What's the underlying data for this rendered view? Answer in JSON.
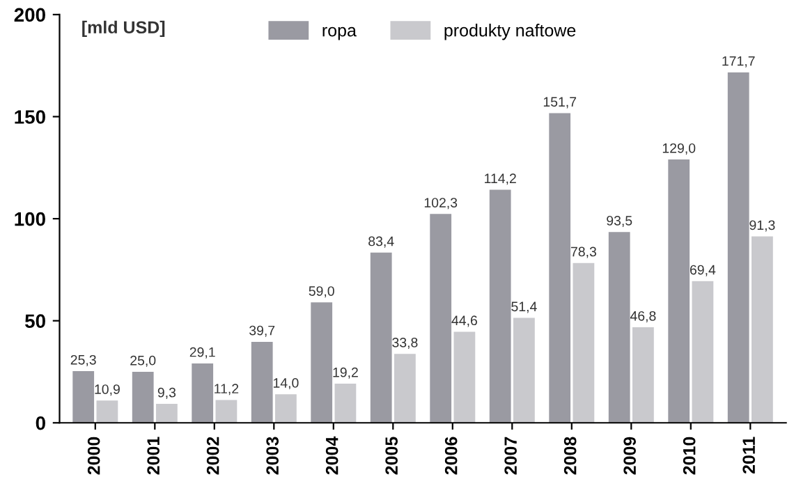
{
  "chart_data": {
    "type": "bar",
    "ylabel": "[mld USD]",
    "categories": [
      "2000",
      "2001",
      "2002",
      "2003",
      "2004",
      "2005",
      "2006",
      "2007",
      "2008",
      "2009",
      "2010",
      "2011"
    ],
    "series": [
      {
        "name": "ropa",
        "color": "#9a9aa2",
        "values": [
          25.3,
          25.0,
          29.1,
          39.7,
          59.0,
          83.4,
          102.3,
          114.2,
          151.7,
          93.5,
          129.0,
          171.7
        ],
        "value_labels": [
          "25,3",
          "25,0",
          "29,1",
          "39,7",
          "59,0",
          "83,4",
          "102,3",
          "114,2",
          "151,7",
          "93,5",
          "129,0",
          "171,7"
        ]
      },
      {
        "name": "produkty naftowe",
        "color": "#c9c9cd",
        "values": [
          10.9,
          9.3,
          11.2,
          14.0,
          19.2,
          33.8,
          44.6,
          51.4,
          78.3,
          46.8,
          69.4,
          91.3
        ],
        "value_labels": [
          "10,9",
          "9,3",
          "11,2",
          "14,0",
          "19,2",
          "33,8",
          "44,6",
          "51,4",
          "78,3",
          "46,8",
          "69,4",
          "91,3"
        ]
      }
    ],
    "ylim": [
      0,
      200
    ],
    "yticks": [
      0,
      50,
      100,
      150,
      200
    ],
    "grid": false,
    "legend": "top"
  }
}
